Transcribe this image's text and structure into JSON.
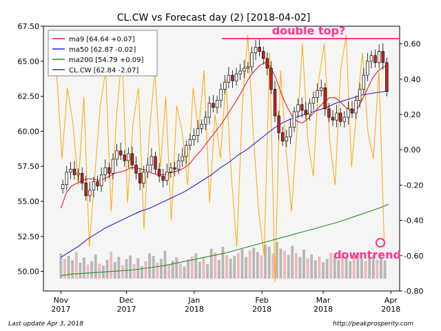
{
  "chart_data": {
    "type": "candlestick",
    "title": "CL.CW vs Forecast day (2)  [2018-04-02]",
    "y_left": {
      "ticks": [
        "67.50",
        "65.00",
        "62.50",
        "60.00",
        "57.50",
        "55.00",
        "52.50",
        "50.00"
      ],
      "range": [
        48.6,
        67.5
      ]
    },
    "y_right": {
      "ticks": [
        "0.60",
        "0.40",
        "0.20",
        "0.00",
        "-0.20",
        "-0.40",
        "-0.60",
        "-0.80"
      ],
      "range": [
        -0.8,
        0.7
      ]
    },
    "x_ticks": [
      {
        "line1": "Nov",
        "line2": "2017",
        "day": 0
      },
      {
        "line1": "Dec",
        "line2": "2017",
        "day": 30
      },
      {
        "line1": "Jan",
        "line2": "2018",
        "day": 61
      },
      {
        "line1": "Feb",
        "line2": "2018",
        "day": 92
      },
      {
        "line1": "Mar",
        "line2": "2018",
        "day": 120
      },
      {
        "line1": "Apr",
        "line2": "2018",
        "day": 151
      }
    ],
    "x_range_days": [
      -8,
      155
    ],
    "legend": [
      {
        "label": "ma9 [64.64 +0.07]",
        "color": "#e02020"
      },
      {
        "label": "ma50 [62.87 -0.02]",
        "color": "#2020e0"
      },
      {
        "label": "ma200 [54.79 +0.09]",
        "color": "#209020"
      },
      {
        "label": "CL.CW [62.84 -2.07]",
        "color": "#404040"
      }
    ],
    "candles_close": [
      56.2,
      57.1,
      57.3,
      56.9,
      57.0,
      56.3,
      55.4,
      55.8,
      56.4,
      56.1,
      56.9,
      57.4,
      57.0,
      58.0,
      58.6,
      58.3,
      57.9,
      58.4,
      57.6,
      57.0,
      56.3,
      57.1,
      57.6,
      58.2,
      57.3,
      56.8,
      56.5,
      57.1,
      57.4,
      57.3,
      57.9,
      58.2,
      59.0,
      59.4,
      59.7,
      60.2,
      60.5,
      61.0,
      62.0,
      61.7,
      62.2,
      63.0,
      63.5,
      64.0,
      63.6,
      64.1,
      64.3,
      64.5,
      64.6,
      65.6,
      66.0,
      65.7,
      65.2,
      64.5,
      63.0,
      61.1,
      59.9,
      59.3,
      59.6,
      60.3,
      61.4,
      61.9,
      61.5,
      61.2,
      62.0,
      62.4,
      62.9,
      63.1,
      61.6,
      61.0,
      60.8,
      61.3,
      60.7,
      61.0,
      61.6,
      61.3,
      62.2,
      63.0,
      64.0,
      65.0,
      65.4,
      64.9,
      65.7,
      64.9,
      62.84
    ],
    "ma9": [
      54.5,
      55.6,
      56.1,
      56.3,
      56.5,
      56.6,
      56.6,
      56.5,
      56.6,
      56.8,
      57.0,
      57.1,
      57.2,
      57.4,
      57.4,
      57.3,
      57.2,
      57.0,
      56.9,
      56.9,
      57.0,
      57.1,
      57.2,
      57.4,
      57.7,
      58.2,
      58.6,
      59.1,
      59.6,
      60.1,
      60.6,
      61.2,
      61.8,
      62.4,
      63.1,
      63.8,
      64.3,
      64.7,
      64.9,
      64.6,
      63.8,
      62.7,
      61.8,
      61.1,
      60.7,
      60.6,
      60.9,
      61.3,
      61.7,
      62.1,
      62.4,
      62.4,
      62.1,
      61.7,
      61.5,
      61.5,
      62.2,
      63.0,
      63.8,
      64.3,
      64.6,
      64.64
    ],
    "ma9_day0": 0,
    "ma50": [
      51.0,
      51.4,
      51.8,
      52.3,
      52.7,
      53.1,
      53.4,
      53.7,
      54.0,
      54.3,
      54.5,
      54.8,
      55.1,
      55.4,
      55.7,
      56.1,
      56.5,
      56.9,
      57.4,
      57.8,
      58.3,
      58.7,
      59.2,
      59.7,
      60.2,
      60.6,
      60.9,
      61.1,
      61.3,
      61.5,
      61.7,
      62.0,
      62.2,
      62.4,
      62.6,
      62.7,
      62.8,
      62.87
    ],
    "ma50_day0": 0,
    "ma200": [
      49.7,
      49.8,
      49.85,
      49.9,
      49.95,
      50.0,
      50.05,
      50.1,
      50.2,
      50.3,
      50.4,
      50.55,
      50.7,
      50.85,
      51.0,
      51.15,
      51.3,
      51.5,
      51.7,
      51.9,
      52.1,
      52.3,
      52.5,
      52.7,
      52.9,
      53.1,
      53.3,
      53.5,
      53.75,
      54.0,
      54.25,
      54.5,
      54.79
    ],
    "ma200_day0": 0,
    "forecast": [
      0.45,
      -0.05,
      0.35,
      0.15,
      -0.2,
      0.3,
      -0.55,
      -0.15,
      0.25,
      0.45,
      -0.35,
      0.2,
      0.55,
      -0.3,
      0.15,
      0.35,
      -0.45,
      0.1,
      0.45,
      -0.1,
      0.3,
      -0.4,
      0.25,
      0.1,
      -0.2,
      0.35,
      0.1,
      0.45,
      -0.3,
      0.2,
      -0.05,
      0.4,
      -0.15,
      -0.55,
      0.25,
      0.65,
      0.1,
      -0.35,
      -0.6,
      0.55,
      -0.75,
      0.45,
      0.0,
      -0.35,
      0.1,
      0.6,
      0.05,
      -0.15,
      0.4,
      0.6,
      0.05,
      -0.2,
      0.45,
      0.65,
      -0.1,
      0.25,
      0.55,
      0.1,
      -0.05,
      0.45,
      -0.55
    ],
    "forecast_day0": -2,
    "volume_heights": [
      0.52,
      0.41,
      0.47,
      0.38,
      0.55,
      0.33,
      0.44,
      0.29,
      0.36,
      0.5,
      0.31,
      0.27,
      0.39,
      0.56,
      0.34,
      0.45,
      0.28,
      0.4,
      0.48,
      0.3,
      0.42,
      0.26,
      0.36,
      0.52,
      0.47,
      0.33,
      0.41,
      0.58,
      0.29,
      0.37,
      0.44,
      0.31,
      0.25,
      0.39,
      0.46,
      0.52,
      0.35,
      0.43,
      0.3,
      0.62,
      0.54,
      0.38,
      0.66,
      0.49,
      0.41,
      0.47,
      0.53,
      0.61,
      0.45,
      0.58,
      0.64,
      0.55,
      0.48,
      0.7,
      0.66,
      0.52,
      0.76,
      0.62,
      0.57,
      0.49,
      0.68,
      0.53,
      0.45,
      0.6,
      0.42,
      0.5,
      0.38,
      0.46,
      0.34,
      0.41,
      0.53,
      0.47,
      0.39,
      0.55,
      0.43,
      0.36,
      0.48,
      0.52,
      0.41,
      0.37,
      0.45,
      0.49,
      0.39,
      0.43,
      0.38
    ],
    "annotations": {
      "double_top_label": "double top?",
      "downtrend_label": "downtrend"
    },
    "footer_left": "Last update Apr  3, 2018",
    "footer_right": "http://peakprosperity.com"
  }
}
